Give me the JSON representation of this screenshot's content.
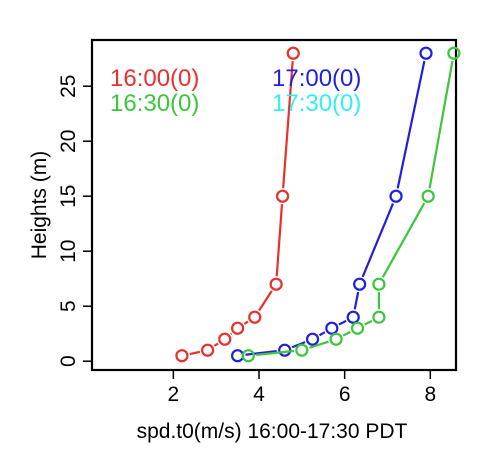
{
  "chart_data": {
    "type": "line",
    "title": "",
    "xlabel": "spd.t0(m/s) 16:00-17:30 PDT",
    "ylabel": "Heights (m)",
    "xlim": [
      0.1,
      8.6
    ],
    "ylim": [
      -0.8,
      29.2
    ],
    "xticks": [
      2,
      4,
      6,
      8
    ],
    "yticks": [
      0,
      5,
      10,
      15,
      20,
      25
    ],
    "grid": false,
    "legend_placement": "top-left, inside plot",
    "series": [
      {
        "name": "16:00(0)",
        "color": "#e8302c",
        "points": [
          {
            "x": 2.2,
            "y": 0.5
          },
          {
            "x": 2.8,
            "y": 1.0
          },
          {
            "x": 3.2,
            "y": 2.0
          },
          {
            "x": 3.5,
            "y": 3.0
          },
          {
            "x": 3.9,
            "y": 4.0
          },
          {
            "x": 4.4,
            "y": 7.0
          },
          {
            "x": 4.55,
            "y": 15.0
          },
          {
            "x": 4.8,
            "y": 28.0
          }
        ]
      },
      {
        "name": "17:00(0)",
        "color": "#1f1fe0",
        "points": [
          {
            "x": 3.5,
            "y": 0.5
          },
          {
            "x": 4.6,
            "y": 1.0
          },
          {
            "x": 5.25,
            "y": 2.0
          },
          {
            "x": 5.7,
            "y": 3.0
          },
          {
            "x": 6.2,
            "y": 4.0
          },
          {
            "x": 6.35,
            "y": 7.0
          },
          {
            "x": 7.2,
            "y": 15.0
          },
          {
            "x": 7.9,
            "y": 28.0
          }
        ]
      },
      {
        "name": "16:30(0)",
        "color": "#3cc63c",
        "points": [
          {
            "x": 3.75,
            "y": 0.5
          },
          {
            "x": 5.0,
            "y": 1.0
          },
          {
            "x": 5.8,
            "y": 2.0
          },
          {
            "x": 6.3,
            "y": 3.0
          },
          {
            "x": 6.8,
            "y": 4.0
          },
          {
            "x": 6.8,
            "y": 7.0
          },
          {
            "x": 7.95,
            "y": 15.0
          },
          {
            "x": 8.55,
            "y": 28.0
          }
        ]
      },
      {
        "name": "17:30(0)",
        "color": "#33f0f0",
        "points": []
      }
    ]
  }
}
